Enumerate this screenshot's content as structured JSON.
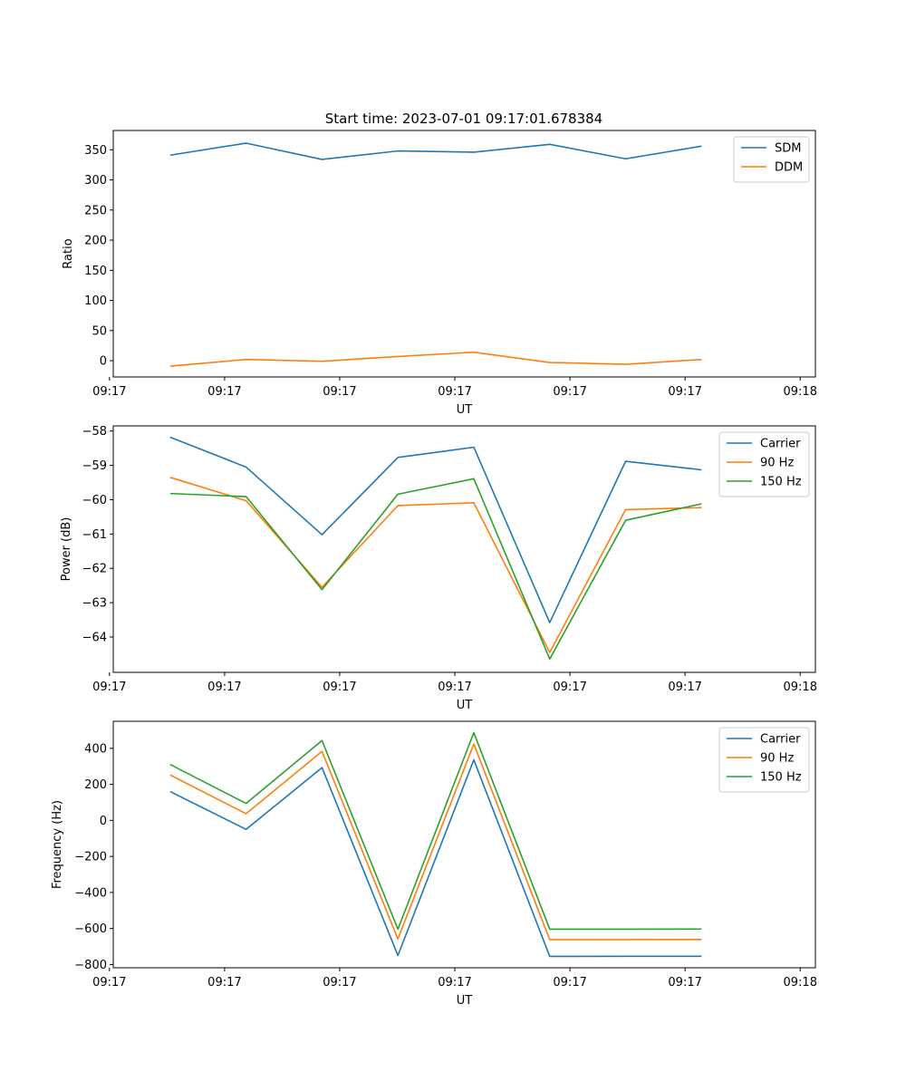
{
  "title": "Start time: 2023-07-01 09:17:01.678384",
  "colors": {
    "blue": "#1f77b4",
    "orange": "#ff7f0e",
    "green": "#2ca02c",
    "axis": "#000000",
    "legend_border": "#cccccc"
  },
  "chart_data": [
    {
      "type": "line",
      "title": "Start time: 2023-07-01 09:17:01.678384",
      "xlabel": "UT",
      "ylabel": "Ratio",
      "x": [
        1,
        2,
        3,
        4,
        5,
        6,
        7,
        8
      ],
      "xlim": [
        0.25,
        9.5
      ],
      "ylim": [
        -27,
        382
      ],
      "xticks": {
        "values": [
          0.2,
          1.717,
          3.233,
          4.75,
          6.267,
          7.783,
          9.3
        ],
        "labels": [
          "09:17",
          "09:17",
          "09:17",
          "09:17",
          "09:17",
          "09:17",
          "09:18"
        ]
      },
      "yticks": [
        0,
        50,
        100,
        150,
        200,
        250,
        300,
        350
      ],
      "legend": "top-right",
      "series": [
        {
          "name": "SDM",
          "color": "#1f77b4",
          "values": [
            341,
            361,
            334,
            348,
            346,
            359,
            335,
            356
          ]
        },
        {
          "name": "DDM",
          "color": "#ff7f0e",
          "values": [
            -9,
            2,
            -1,
            7,
            14,
            -3,
            -6,
            2
          ]
        }
      ]
    },
    {
      "type": "line",
      "title": "",
      "xlabel": "UT",
      "ylabel": "Power (dB)",
      "x": [
        1,
        2,
        3,
        4,
        5,
        6,
        7,
        8
      ],
      "xlim": [
        0.25,
        9.5
      ],
      "ylim": [
        -65.03,
        -57.85
      ],
      "xticks": {
        "values": [
          0.2,
          1.717,
          3.233,
          4.75,
          6.267,
          7.783,
          9.3
        ],
        "labels": [
          "09:17",
          "09:17",
          "09:17",
          "09:17",
          "09:17",
          "09:17",
          "09:18"
        ]
      },
      "yticks": [
        -64,
        -63,
        -62,
        -61,
        -60,
        -59,
        -58
      ],
      "legend": "top-right",
      "series": [
        {
          "name": "Carrier",
          "color": "#1f77b4",
          "values": [
            -58.18,
            -59.05,
            -61.02,
            -58.77,
            -58.47,
            -63.58,
            -58.88,
            -59.13
          ]
        },
        {
          "name": "90 Hz",
          "color": "#ff7f0e",
          "values": [
            -59.35,
            -60.03,
            -62.55,
            -60.17,
            -60.09,
            -64.45,
            -60.29,
            -60.23
          ]
        },
        {
          "name": "150 Hz",
          "color": "#2ca02c",
          "values": [
            -59.82,
            -59.91,
            -62.62,
            -59.84,
            -59.39,
            -64.64,
            -60.6,
            -60.12
          ]
        }
      ]
    },
    {
      "type": "line",
      "title": "",
      "xlabel": "UT",
      "ylabel": "Frequency (Hz)",
      "x": [
        1,
        2,
        3,
        4,
        5,
        6,
        7,
        8
      ],
      "xlim": [
        0.25,
        9.5
      ],
      "ylim": [
        -818,
        550
      ],
      "xticks": {
        "values": [
          0.2,
          1.717,
          3.233,
          4.75,
          6.267,
          7.783,
          9.3
        ],
        "labels": [
          "09:17",
          "09:17",
          "09:17",
          "09:17",
          "09:17",
          "09:17",
          "09:18"
        ]
      },
      "yticks": [
        -800,
        -600,
        -400,
        -200,
        0,
        200,
        400
      ],
      "legend": "top-right",
      "series": [
        {
          "name": "Carrier",
          "color": "#1f77b4",
          "values": [
            160,
            -50,
            293,
            -750,
            336,
            -755,
            -754,
            -754
          ]
        },
        {
          "name": "90 Hz",
          "color": "#ff7f0e",
          "values": [
            252,
            37,
            383,
            -658,
            424,
            -662,
            -662,
            -661
          ]
        },
        {
          "name": "150 Hz",
          "color": "#2ca02c",
          "values": [
            310,
            94,
            443,
            -604,
            487,
            -604,
            -604,
            -603
          ]
        }
      ]
    }
  ]
}
